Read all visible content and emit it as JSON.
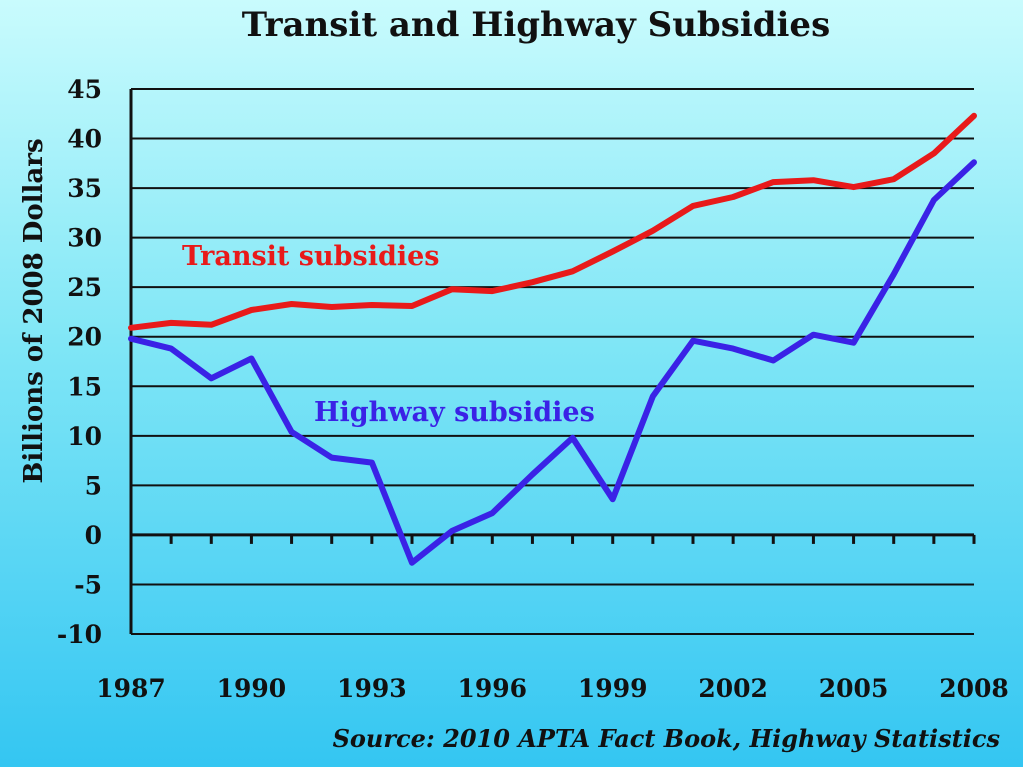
{
  "chart_data": {
    "type": "line",
    "title": "Transit and Highway Subsidies",
    "ylabel": "Billions of 2008 Dollars",
    "xlabel": "",
    "source": "Source: 2010 APTA Fact Book, Highway Statistics",
    "x": [
      1987,
      1988,
      1989,
      1990,
      1991,
      1992,
      1993,
      1994,
      1995,
      1996,
      1997,
      1998,
      1999,
      2000,
      2001,
      2002,
      2003,
      2004,
      2005,
      2006,
      2007,
      2008
    ],
    "x_ticks": [
      "1987",
      "1990",
      "1993",
      "1996",
      "1999",
      "2002",
      "2005",
      "2008"
    ],
    "y_ticks": [
      "45",
      "40",
      "35",
      "30",
      "25",
      "20",
      "15",
      "10",
      "5",
      "0",
      "-5",
      "-10"
    ],
    "ylim": [
      -10,
      45
    ],
    "xlim": [
      1987,
      2008
    ],
    "grid": "horizontal",
    "series": [
      {
        "name": "Transit subsidies",
        "color": "#e81a1a",
        "values": [
          20.9,
          21.4,
          21.2,
          22.7,
          23.3,
          23.0,
          23.2,
          23.1,
          24.8,
          24.6,
          25.5,
          26.6,
          28.6,
          30.7,
          33.2,
          34.1,
          35.6,
          35.8,
          35.1,
          35.9,
          38.5,
          42.3
        ]
      },
      {
        "name": "Highway subsidies",
        "color": "#3a22e6",
        "values": [
          19.8,
          18.8,
          15.8,
          17.8,
          10.4,
          7.8,
          7.3,
          -2.8,
          0.4,
          2.2,
          6.1,
          9.8,
          3.6,
          14.0,
          19.6,
          18.8,
          17.6,
          20.2,
          19.4,
          26.3,
          33.8,
          37.6
        ]
      }
    ]
  }
}
